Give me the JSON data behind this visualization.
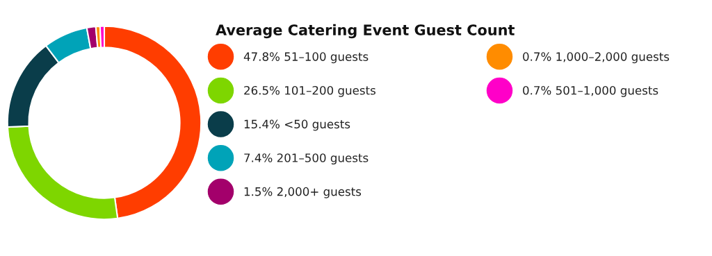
{
  "chart_data": {
    "type": "donut",
    "title": "Average Catering Event Guest Count",
    "categories": [
      "51–100 guests",
      "101–200 guests",
      "<50 guests",
      "201–500 guests",
      "2,000+ guests",
      "1,000–2,000 guests",
      "501–1,000 guests"
    ],
    "values": [
      47.8,
      26.5,
      15.4,
      7.4,
      1.5,
      0.7,
      0.7
    ],
    "value_labels": [
      "47.8%",
      "26.5%",
      "15.4%",
      "7.4%",
      "1.5%",
      "0.7%",
      "0.7%"
    ],
    "colors": [
      "#ff3d00",
      "#7ed600",
      "#0a3d4a",
      "#00a3b8",
      "#a3006b",
      "#ff8c00",
      "#ff00c8"
    ],
    "legend": "right"
  }
}
